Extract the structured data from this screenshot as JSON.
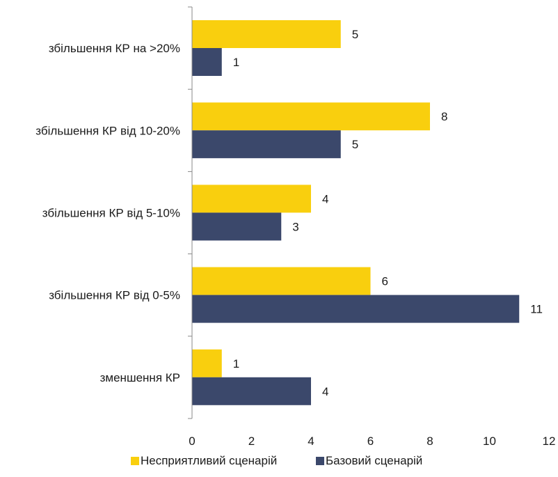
{
  "chart_data": {
    "type": "bar",
    "orientation": "horizontal",
    "title": "",
    "xlabel": "",
    "ylabel": "",
    "categories": [
      "збільшення КР на >20%",
      "збільшення КР від 10-20%",
      "збільшення КР від 5-10%",
      "збільшення КР від 0-5%",
      "зменшення КР"
    ],
    "series": [
      {
        "name": "Несприятливий сценарій",
        "color": "#F9CF0E",
        "values": [
          5,
          8,
          4,
          6,
          1
        ]
      },
      {
        "name": "Базовий сценарій",
        "color": "#3B486B",
        "values": [
          1,
          5,
          3,
          11,
          4
        ]
      }
    ],
    "xlim": [
      0,
      12
    ],
    "xticks": [
      0,
      2,
      4,
      6,
      8,
      10,
      12
    ],
    "grid": false,
    "legend_position": "bottom",
    "data_labels": true
  }
}
